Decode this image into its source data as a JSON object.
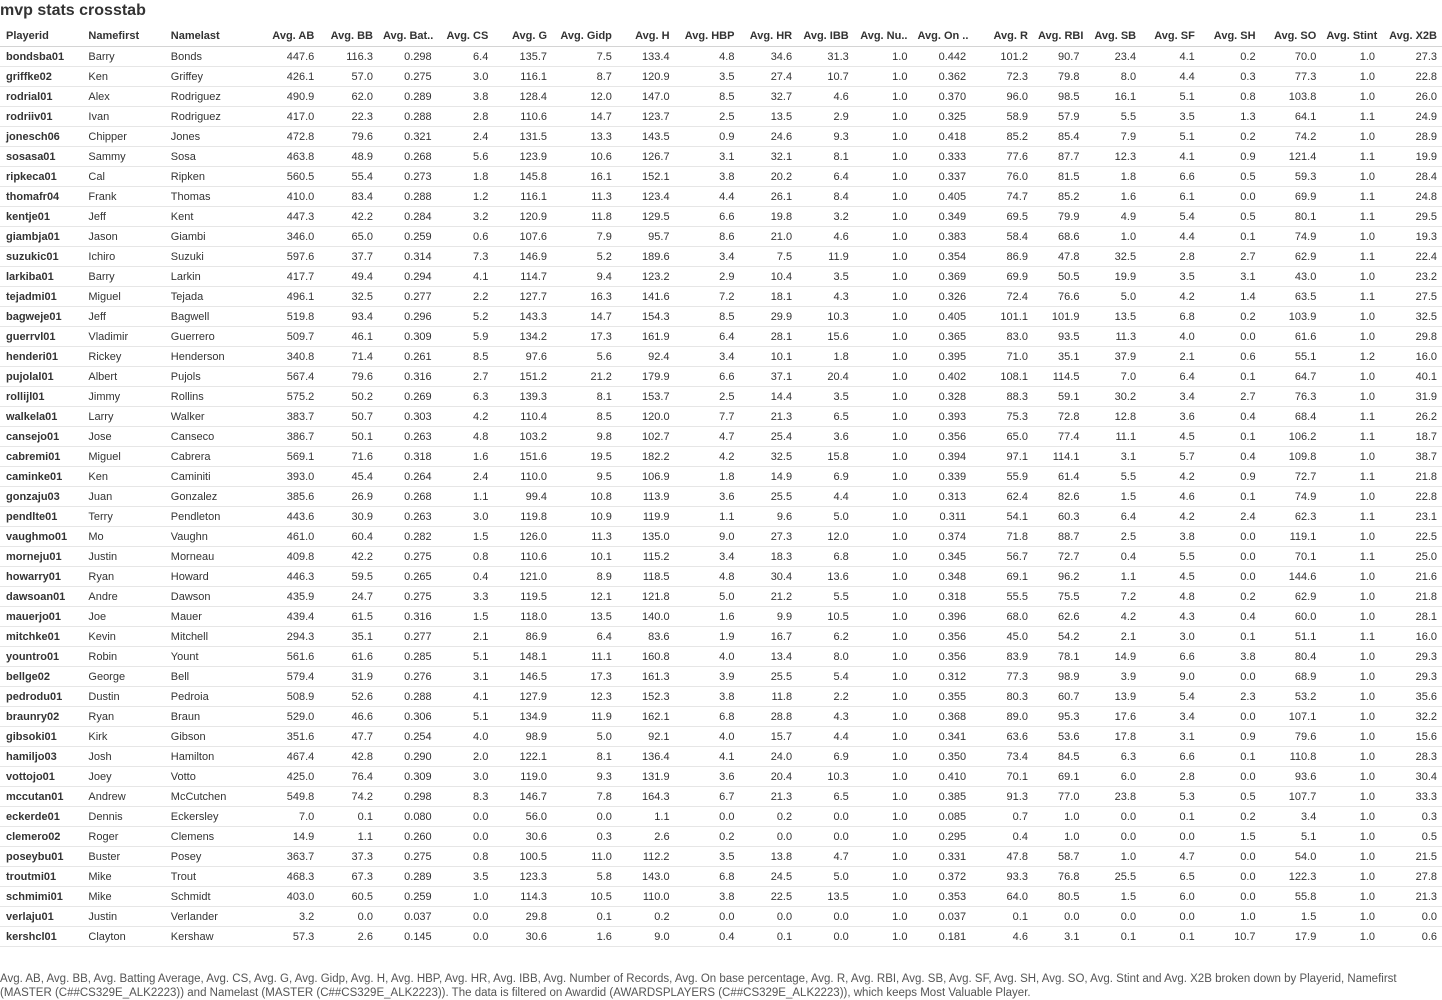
{
  "sheet": {
    "title": "mvp stats crosstab",
    "caption": "Avg. AB, Avg. BB, Avg. Batting Average, Avg. CS, Avg. G, Avg. Gidp, Avg. H, Avg. HBP, Avg. HR, Avg. IBB, Avg. Number of Records, Avg. On base percentage, Avg. R, Avg. RBI, Avg. SB, Avg. SF, Avg. SH, Avg. SO, Avg. Stint and Avg. X2B broken down by Playerid, Namefirst (MASTER (C##CS329E_ALK2223)) and Namelast (MASTER (C##CS329E_ALK2223)). The data is filtered on Awardid (AWARDSPLAYERS (C##CS329E_ALK2223)), which keeps Most Valuable Player."
  },
  "table": {
    "columns": [
      "Playerid",
      "Namefirst",
      "Namelast",
      "Avg. AB",
      "Avg. BB",
      "Avg. Bat..",
      "Avg. CS",
      "Avg. G",
      "Avg. Gidp",
      "Avg. H",
      "Avg. HBP",
      "Avg. HR",
      "Avg. IBB",
      "Avg. Nu..",
      "Avg. On ..",
      "Avg. R",
      "Avg. RBI",
      "Avg. SB",
      "Avg. SF",
      "Avg. SH",
      "Avg. SO",
      "Avg. Stint",
      "Avg. X2B"
    ],
    "rows": [
      [
        "bondsba01",
        "Barry",
        "Bonds",
        "447.6",
        "116.3",
        "0.298",
        "6.4",
        "135.7",
        "7.5",
        "133.4",
        "4.8",
        "34.6",
        "31.3",
        "1.0",
        "0.442",
        "101.2",
        "90.7",
        "23.4",
        "4.1",
        "0.2",
        "70.0",
        "1.0",
        "27.3"
      ],
      [
        "griffke02",
        "Ken",
        "Griffey",
        "426.1",
        "57.0",
        "0.275",
        "3.0",
        "116.1",
        "8.7",
        "120.9",
        "3.5",
        "27.4",
        "10.7",
        "1.0",
        "0.362",
        "72.3",
        "79.8",
        "8.0",
        "4.4",
        "0.3",
        "77.3",
        "1.0",
        "22.8"
      ],
      [
        "rodrial01",
        "Alex",
        "Rodriguez",
        "490.9",
        "62.0",
        "0.289",
        "3.8",
        "128.4",
        "12.0",
        "147.0",
        "8.5",
        "32.7",
        "4.6",
        "1.0",
        "0.370",
        "96.0",
        "98.5",
        "16.1",
        "5.1",
        "0.8",
        "103.8",
        "1.0",
        "26.0"
      ],
      [
        "rodriiv01",
        "Ivan",
        "Rodriguez",
        "417.0",
        "22.3",
        "0.288",
        "2.8",
        "110.6",
        "14.7",
        "123.7",
        "2.5",
        "13.5",
        "2.9",
        "1.0",
        "0.325",
        "58.9",
        "57.9",
        "5.5",
        "3.5",
        "1.3",
        "64.1",
        "1.1",
        "24.9"
      ],
      [
        "jonesch06",
        "Chipper",
        "Jones",
        "472.8",
        "79.6",
        "0.321",
        "2.4",
        "131.5",
        "13.3",
        "143.5",
        "0.9",
        "24.6",
        "9.3",
        "1.0",
        "0.418",
        "85.2",
        "85.4",
        "7.9",
        "5.1",
        "0.2",
        "74.2",
        "1.0",
        "28.9"
      ],
      [
        "sosasa01",
        "Sammy",
        "Sosa",
        "463.8",
        "48.9",
        "0.268",
        "5.6",
        "123.9",
        "10.6",
        "126.7",
        "3.1",
        "32.1",
        "8.1",
        "1.0",
        "0.333",
        "77.6",
        "87.7",
        "12.3",
        "4.1",
        "0.9",
        "121.4",
        "1.1",
        "19.9"
      ],
      [
        "ripkeca01",
        "Cal",
        "Ripken",
        "560.5",
        "55.4",
        "0.273",
        "1.8",
        "145.8",
        "16.1",
        "152.1",
        "3.8",
        "20.2",
        "6.4",
        "1.0",
        "0.337",
        "76.0",
        "81.5",
        "1.8",
        "6.6",
        "0.5",
        "59.3",
        "1.0",
        "28.4"
      ],
      [
        "thomafr04",
        "Frank",
        "Thomas",
        "410.0",
        "83.4",
        "0.288",
        "1.2",
        "116.1",
        "11.3",
        "123.4",
        "4.4",
        "26.1",
        "8.4",
        "1.0",
        "0.405",
        "74.7",
        "85.2",
        "1.6",
        "6.1",
        "0.0",
        "69.9",
        "1.1",
        "24.8"
      ],
      [
        "kentje01",
        "Jeff",
        "Kent",
        "447.3",
        "42.2",
        "0.284",
        "3.2",
        "120.9",
        "11.8",
        "129.5",
        "6.6",
        "19.8",
        "3.2",
        "1.0",
        "0.349",
        "69.5",
        "79.9",
        "4.9",
        "5.4",
        "0.5",
        "80.1",
        "1.1",
        "29.5"
      ],
      [
        "giambja01",
        "Jason",
        "Giambi",
        "346.0",
        "65.0",
        "0.259",
        "0.6",
        "107.6",
        "7.9",
        "95.7",
        "8.6",
        "21.0",
        "4.6",
        "1.0",
        "0.383",
        "58.4",
        "68.6",
        "1.0",
        "4.4",
        "0.1",
        "74.9",
        "1.0",
        "19.3"
      ],
      [
        "suzukic01",
        "Ichiro",
        "Suzuki",
        "597.6",
        "37.7",
        "0.314",
        "7.3",
        "146.9",
        "5.2",
        "189.6",
        "3.4",
        "7.5",
        "11.9",
        "1.0",
        "0.354",
        "86.9",
        "47.8",
        "32.5",
        "2.8",
        "2.7",
        "62.9",
        "1.1",
        "22.4"
      ],
      [
        "larkiba01",
        "Barry",
        "Larkin",
        "417.7",
        "49.4",
        "0.294",
        "4.1",
        "114.7",
        "9.4",
        "123.2",
        "2.9",
        "10.4",
        "3.5",
        "1.0",
        "0.369",
        "69.9",
        "50.5",
        "19.9",
        "3.5",
        "3.1",
        "43.0",
        "1.0",
        "23.2"
      ],
      [
        "tejadmi01",
        "Miguel",
        "Tejada",
        "496.1",
        "32.5",
        "0.277",
        "2.2",
        "127.7",
        "16.3",
        "141.6",
        "7.2",
        "18.1",
        "4.3",
        "1.0",
        "0.326",
        "72.4",
        "76.6",
        "5.0",
        "4.2",
        "1.4",
        "63.5",
        "1.1",
        "27.5"
      ],
      [
        "bagweje01",
        "Jeff",
        "Bagwell",
        "519.8",
        "93.4",
        "0.296",
        "5.2",
        "143.3",
        "14.7",
        "154.3",
        "8.5",
        "29.9",
        "10.3",
        "1.0",
        "0.405",
        "101.1",
        "101.9",
        "13.5",
        "6.8",
        "0.2",
        "103.9",
        "1.0",
        "32.5"
      ],
      [
        "guerrvl01",
        "Vladimir",
        "Guerrero",
        "509.7",
        "46.1",
        "0.309",
        "5.9",
        "134.2",
        "17.3",
        "161.9",
        "6.4",
        "28.1",
        "15.6",
        "1.0",
        "0.365",
        "83.0",
        "93.5",
        "11.3",
        "4.0",
        "0.0",
        "61.6",
        "1.0",
        "29.8"
      ],
      [
        "henderi01",
        "Rickey",
        "Henderson",
        "340.8",
        "71.4",
        "0.261",
        "8.5",
        "97.6",
        "5.6",
        "92.4",
        "3.4",
        "10.1",
        "1.8",
        "1.0",
        "0.395",
        "71.0",
        "35.1",
        "37.9",
        "2.1",
        "0.6",
        "55.1",
        "1.2",
        "16.0"
      ],
      [
        "pujolal01",
        "Albert",
        "Pujols",
        "567.4",
        "79.6",
        "0.316",
        "2.7",
        "151.2",
        "21.2",
        "179.9",
        "6.6",
        "37.1",
        "20.4",
        "1.0",
        "0.402",
        "108.1",
        "114.5",
        "7.0",
        "6.4",
        "0.1",
        "64.7",
        "1.0",
        "40.1"
      ],
      [
        "rollijl01",
        "Jimmy",
        "Rollins",
        "575.2",
        "50.2",
        "0.269",
        "6.3",
        "139.3",
        "8.1",
        "153.7",
        "2.5",
        "14.4",
        "3.5",
        "1.0",
        "0.328",
        "88.3",
        "59.1",
        "30.2",
        "3.4",
        "2.7",
        "76.3",
        "1.0",
        "31.9"
      ],
      [
        "walkela01",
        "Larry",
        "Walker",
        "383.7",
        "50.7",
        "0.303",
        "4.2",
        "110.4",
        "8.5",
        "120.0",
        "7.7",
        "21.3",
        "6.5",
        "1.0",
        "0.393",
        "75.3",
        "72.8",
        "12.8",
        "3.6",
        "0.4",
        "68.4",
        "1.1",
        "26.2"
      ],
      [
        "cansejo01",
        "Jose",
        "Canseco",
        "386.7",
        "50.1",
        "0.263",
        "4.8",
        "103.2",
        "9.8",
        "102.7",
        "4.7",
        "25.4",
        "3.6",
        "1.0",
        "0.356",
        "65.0",
        "77.4",
        "11.1",
        "4.5",
        "0.1",
        "106.2",
        "1.1",
        "18.7"
      ],
      [
        "cabremi01",
        "Miguel",
        "Cabrera",
        "569.1",
        "71.6",
        "0.318",
        "1.6",
        "151.6",
        "19.5",
        "182.2",
        "4.2",
        "32.5",
        "15.8",
        "1.0",
        "0.394",
        "97.1",
        "114.1",
        "3.1",
        "5.7",
        "0.4",
        "109.8",
        "1.0",
        "38.7"
      ],
      [
        "caminke01",
        "Ken",
        "Caminiti",
        "393.0",
        "45.4",
        "0.264",
        "2.4",
        "110.0",
        "9.5",
        "106.9",
        "1.8",
        "14.9",
        "6.9",
        "1.0",
        "0.339",
        "55.9",
        "61.4",
        "5.5",
        "4.2",
        "0.9",
        "72.7",
        "1.1",
        "21.8"
      ],
      [
        "gonzaju03",
        "Juan",
        "Gonzalez",
        "385.6",
        "26.9",
        "0.268",
        "1.1",
        "99.4",
        "10.8",
        "113.9",
        "3.6",
        "25.5",
        "4.4",
        "1.0",
        "0.313",
        "62.4",
        "82.6",
        "1.5",
        "4.6",
        "0.1",
        "74.9",
        "1.0",
        "22.8"
      ],
      [
        "pendlte01",
        "Terry",
        "Pendleton",
        "443.6",
        "30.9",
        "0.263",
        "3.0",
        "119.8",
        "10.9",
        "119.9",
        "1.1",
        "9.6",
        "5.0",
        "1.0",
        "0.311",
        "54.1",
        "60.3",
        "6.4",
        "4.2",
        "2.4",
        "62.3",
        "1.1",
        "23.1"
      ],
      [
        "vaughmo01",
        "Mo",
        "Vaughn",
        "461.0",
        "60.4",
        "0.282",
        "1.5",
        "126.0",
        "11.3",
        "135.0",
        "9.0",
        "27.3",
        "12.0",
        "1.0",
        "0.374",
        "71.8",
        "88.7",
        "2.5",
        "3.8",
        "0.0",
        "119.1",
        "1.0",
        "22.5"
      ],
      [
        "morneju01",
        "Justin",
        "Morneau",
        "409.8",
        "42.2",
        "0.275",
        "0.8",
        "110.6",
        "10.1",
        "115.2",
        "3.4",
        "18.3",
        "6.8",
        "1.0",
        "0.345",
        "56.7",
        "72.7",
        "0.4",
        "5.5",
        "0.0",
        "70.1",
        "1.1",
        "25.0"
      ],
      [
        "howarry01",
        "Ryan",
        "Howard",
        "446.3",
        "59.5",
        "0.265",
        "0.4",
        "121.0",
        "8.9",
        "118.5",
        "4.8",
        "30.4",
        "13.6",
        "1.0",
        "0.348",
        "69.1",
        "96.2",
        "1.1",
        "4.5",
        "0.0",
        "144.6",
        "1.0",
        "21.6"
      ],
      [
        "dawsoan01",
        "Andre",
        "Dawson",
        "435.9",
        "24.7",
        "0.275",
        "3.3",
        "119.5",
        "12.1",
        "121.8",
        "5.0",
        "21.2",
        "5.5",
        "1.0",
        "0.318",
        "55.5",
        "75.5",
        "7.2",
        "4.8",
        "0.2",
        "62.9",
        "1.0",
        "21.8"
      ],
      [
        "mauerjo01",
        "Joe",
        "Mauer",
        "439.4",
        "61.5",
        "0.316",
        "1.5",
        "118.0",
        "13.5",
        "140.0",
        "1.6",
        "9.9",
        "10.5",
        "1.0",
        "0.396",
        "68.0",
        "62.6",
        "4.2",
        "4.3",
        "0.4",
        "60.0",
        "1.0",
        "28.1"
      ],
      [
        "mitchke01",
        "Kevin",
        "Mitchell",
        "294.3",
        "35.1",
        "0.277",
        "2.1",
        "86.9",
        "6.4",
        "83.6",
        "1.9",
        "16.7",
        "6.2",
        "1.0",
        "0.356",
        "45.0",
        "54.2",
        "2.1",
        "3.0",
        "0.1",
        "51.1",
        "1.1",
        "16.0"
      ],
      [
        "yountro01",
        "Robin",
        "Yount",
        "561.6",
        "61.6",
        "0.285",
        "5.1",
        "148.1",
        "11.1",
        "160.8",
        "4.0",
        "13.4",
        "8.0",
        "1.0",
        "0.356",
        "83.9",
        "78.1",
        "14.9",
        "6.6",
        "3.8",
        "80.4",
        "1.0",
        "29.3"
      ],
      [
        "bellge02",
        "George",
        "Bell",
        "579.4",
        "31.9",
        "0.276",
        "3.1",
        "146.5",
        "17.3",
        "161.3",
        "3.9",
        "25.5",
        "5.4",
        "1.0",
        "0.312",
        "77.3",
        "98.9",
        "3.9",
        "9.0",
        "0.0",
        "68.9",
        "1.0",
        "29.3"
      ],
      [
        "pedrodu01",
        "Dustin",
        "Pedroia",
        "508.9",
        "52.6",
        "0.288",
        "4.1",
        "127.9",
        "12.3",
        "152.3",
        "3.8",
        "11.8",
        "2.2",
        "1.0",
        "0.355",
        "80.3",
        "60.7",
        "13.9",
        "5.4",
        "2.3",
        "53.2",
        "1.0",
        "35.6"
      ],
      [
        "braunry02",
        "Ryan",
        "Braun",
        "529.0",
        "46.6",
        "0.306",
        "5.1",
        "134.9",
        "11.9",
        "162.1",
        "6.8",
        "28.8",
        "4.3",
        "1.0",
        "0.368",
        "89.0",
        "95.3",
        "17.6",
        "3.4",
        "0.0",
        "107.1",
        "1.0",
        "32.2"
      ],
      [
        "gibsoki01",
        "Kirk",
        "Gibson",
        "351.6",
        "47.7",
        "0.254",
        "4.0",
        "98.9",
        "5.0",
        "92.1",
        "4.0",
        "15.7",
        "4.4",
        "1.0",
        "0.341",
        "63.6",
        "53.6",
        "17.8",
        "3.1",
        "0.9",
        "79.6",
        "1.0",
        "15.6"
      ],
      [
        "hamiljo03",
        "Josh",
        "Hamilton",
        "467.4",
        "42.8",
        "0.290",
        "2.0",
        "122.1",
        "8.1",
        "136.4",
        "4.1",
        "24.0",
        "6.9",
        "1.0",
        "0.350",
        "73.4",
        "84.5",
        "6.3",
        "6.6",
        "0.1",
        "110.8",
        "1.0",
        "28.3"
      ],
      [
        "vottojo01",
        "Joey",
        "Votto",
        "425.0",
        "76.4",
        "0.309",
        "3.0",
        "119.0",
        "9.3",
        "131.9",
        "3.6",
        "20.4",
        "10.3",
        "1.0",
        "0.410",
        "70.1",
        "69.1",
        "6.0",
        "2.8",
        "0.0",
        "93.6",
        "1.0",
        "30.4"
      ],
      [
        "mccutan01",
        "Andrew",
        "McCutchen",
        "549.8",
        "74.2",
        "0.298",
        "8.3",
        "146.7",
        "7.8",
        "164.3",
        "6.7",
        "21.3",
        "6.5",
        "1.0",
        "0.385",
        "91.3",
        "77.0",
        "23.8",
        "5.3",
        "0.5",
        "107.7",
        "1.0",
        "33.3"
      ],
      [
        "eckerde01",
        "Dennis",
        "Eckersley",
        "7.0",
        "0.1",
        "0.080",
        "0.0",
        "56.0",
        "0.0",
        "1.1",
        "0.0",
        "0.2",
        "0.0",
        "1.0",
        "0.085",
        "0.7",
        "1.0",
        "0.0",
        "0.1",
        "0.2",
        "3.4",
        "1.0",
        "0.3"
      ],
      [
        "clemero02",
        "Roger",
        "Clemens",
        "14.9",
        "1.1",
        "0.260",
        "0.0",
        "30.6",
        "0.3",
        "2.6",
        "0.2",
        "0.0",
        "0.0",
        "1.0",
        "0.295",
        "0.4",
        "1.0",
        "0.0",
        "0.0",
        "1.5",
        "5.1",
        "1.0",
        "0.5"
      ],
      [
        "poseybu01",
        "Buster",
        "Posey",
        "363.7",
        "37.3",
        "0.275",
        "0.8",
        "100.5",
        "11.0",
        "112.2",
        "3.5",
        "13.8",
        "4.7",
        "1.0",
        "0.331",
        "47.8",
        "58.7",
        "1.0",
        "4.7",
        "0.0",
        "54.0",
        "1.0",
        "21.5"
      ],
      [
        "troutmi01",
        "Mike",
        "Trout",
        "468.3",
        "67.3",
        "0.289",
        "3.5",
        "123.3",
        "5.8",
        "143.0",
        "6.8",
        "24.5",
        "5.0",
        "1.0",
        "0.372",
        "93.3",
        "76.8",
        "25.5",
        "6.5",
        "0.0",
        "122.3",
        "1.0",
        "27.8"
      ],
      [
        "schmimi01",
        "Mike",
        "Schmidt",
        "403.0",
        "60.5",
        "0.259",
        "1.0",
        "114.3",
        "10.5",
        "110.0",
        "3.8",
        "22.5",
        "13.5",
        "1.0",
        "0.353",
        "64.0",
        "80.5",
        "1.5",
        "6.0",
        "0.0",
        "55.8",
        "1.0",
        "21.3"
      ],
      [
        "verlaju01",
        "Justin",
        "Verlander",
        "3.2",
        "0.0",
        "0.037",
        "0.0",
        "29.8",
        "0.1",
        "0.2",
        "0.0",
        "0.0",
        "0.0",
        "1.0",
        "0.037",
        "0.1",
        "0.0",
        "0.0",
        "0.0",
        "1.0",
        "1.5",
        "1.0",
        "0.0"
      ],
      [
        "kershcl01",
        "Clayton",
        "Kershaw",
        "57.3",
        "2.6",
        "0.145",
        "0.0",
        "30.6",
        "1.6",
        "9.0",
        "0.4",
        "0.1",
        "0.0",
        "1.0",
        "0.181",
        "4.6",
        "3.1",
        "0.1",
        "0.1",
        "10.7",
        "17.9",
        "1.0",
        "0.6"
      ]
    ]
  }
}
